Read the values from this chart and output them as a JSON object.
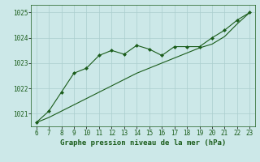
{
  "x": [
    6,
    7,
    8,
    9,
    10,
    11,
    12,
    13,
    14,
    15,
    16,
    17,
    18,
    19,
    20,
    21,
    22,
    23
  ],
  "y_jagged": [
    1020.65,
    1021.1,
    1021.85,
    1022.6,
    1022.8,
    1023.3,
    1023.5,
    1023.35,
    1023.7,
    1023.55,
    1023.3,
    1023.65,
    1023.65,
    1023.65,
    1024.0,
    1024.3,
    1024.7,
    1025.0
  ],
  "y_smooth": [
    1020.65,
    1020.85,
    1021.1,
    1021.35,
    1021.6,
    1021.85,
    1022.1,
    1022.35,
    1022.6,
    1022.8,
    1023.0,
    1023.2,
    1023.4,
    1023.6,
    1023.75,
    1024.05,
    1024.55,
    1025.0
  ],
  "line_color": "#1a5c1a",
  "bg_color": "#cce8e8",
  "grid_color": "#aacece",
  "xlabel": "Graphe pression niveau de la mer (hPa)",
  "ylim": [
    1020.5,
    1025.3
  ],
  "yticks": [
    1021,
    1022,
    1023,
    1024,
    1025
  ],
  "xticks": [
    6,
    7,
    8,
    9,
    10,
    11,
    12,
    13,
    14,
    15,
    16,
    17,
    18,
    19,
    20,
    21,
    22,
    23
  ],
  "xlim": [
    5.6,
    23.4
  ]
}
